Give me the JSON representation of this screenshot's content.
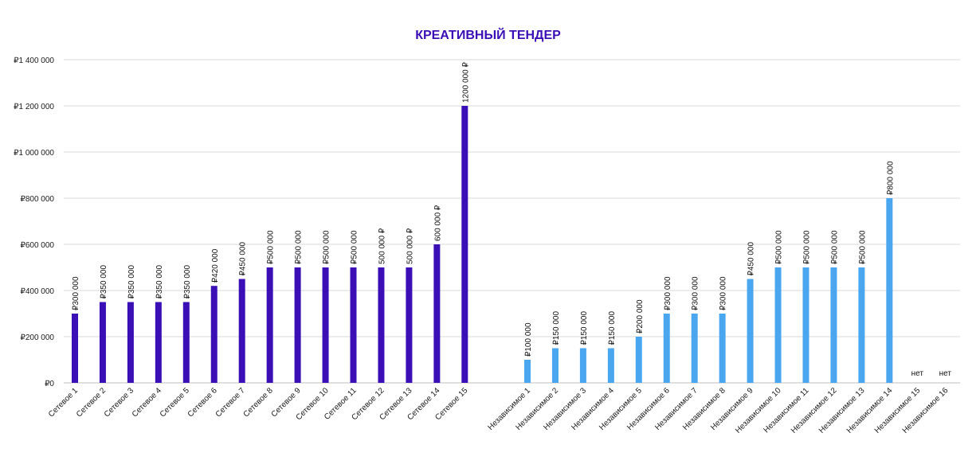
{
  "chart_data": {
    "type": "bar",
    "title": "КРЕАТИВНЫЙ ТЕНДЕР",
    "xlabel": "",
    "ylabel": "",
    "ylim": [
      0,
      1400000
    ],
    "y_ticks": [
      0,
      200000,
      400000,
      600000,
      800000,
      1000000,
      1200000,
      1400000
    ],
    "y_tick_labels": [
      "₽0",
      "₽200 000",
      "₽400 000",
      "₽600 000",
      "₽800 000",
      "₽1 000 000",
      "₽1 200 000",
      "₽1 400 000"
    ],
    "grid": true,
    "legend": "none",
    "groups": [
      {
        "color": "#3a0fb5",
        "categories": [
          "Сетевое 1",
          "Сетевое 2",
          "Сетевое 3",
          "Сетевое 4",
          "Сетевое 5",
          "Сетевое 6",
          "Сетевое 7",
          "Сетевое 8",
          "Сетевое 9",
          "Сетевое 10",
          "Сетевое 11",
          "Сетевое 12",
          "Сетевое 13",
          "Сетевое 14",
          "Сетевое 15"
        ],
        "values": [
          300000,
          350000,
          350000,
          350000,
          350000,
          420000,
          450000,
          500000,
          500000,
          500000,
          500000,
          500000,
          500000,
          600000,
          1200000
        ],
        "labels": [
          "₽300 000",
          "₽350 000",
          "₽350 000",
          "₽350 000",
          "₽350 000",
          "₽420 000",
          "₽450 000",
          "₽500 000",
          "₽500 000",
          "₽500 000",
          "₽500 000",
          "500 000 ₽",
          "500 000 ₽",
          "600 000 ₽",
          "1200 000 ₽"
        ]
      },
      {
        "color": "#4aa6ee",
        "categories": [
          "Независимое 1",
          "Независимое 2",
          "Независимое 3",
          "Независимое 4",
          "Независимое 5",
          "Независимое 6",
          "Независимое 7",
          "Независимое 8",
          "Независимое 9",
          "Независимое 10",
          "Независимое 11",
          "Независимое 12",
          "Независимое 13",
          "Независимое 14",
          "Независимое 15",
          "Независимое 16"
        ],
        "values": [
          100000,
          150000,
          150000,
          150000,
          200000,
          300000,
          300000,
          300000,
          450000,
          500000,
          500000,
          500000,
          500000,
          800000,
          null,
          null
        ],
        "labels": [
          "₽100 000",
          "₽150 000",
          "₽150 000",
          "₽150 000",
          "₽200 000",
          "₽300 000",
          "₽300 000",
          "₽300 000",
          "₽450 000",
          "₽500 000",
          "₽500 000",
          "₽500 000",
          "₽500 000",
          "₽800 000",
          "нет",
          "нет"
        ]
      }
    ]
  },
  "colors": {
    "title": "#3a0fb5"
  }
}
